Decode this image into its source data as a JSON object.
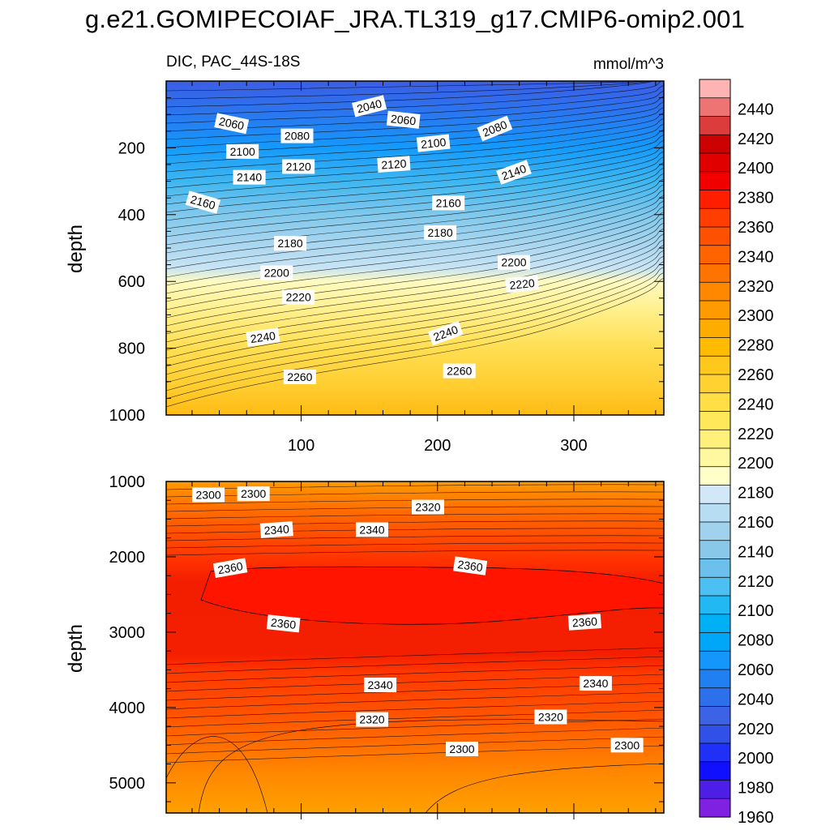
{
  "title": "g.e21.GOMIPECOIAF_JRA.TL319_g17.CMIP6-omip2.001",
  "chart_data": [
    {
      "type": "heatmap",
      "panel": "upper",
      "left_label": "DIC, PAC_44S-18S",
      "right_label": "mmol/m^3",
      "xlabel": "",
      "ylabel": "depth",
      "xlim": [
        1,
        366
      ],
      "ylim": [
        1000,
        0
      ],
      "x_ticks": [
        100,
        200,
        300
      ],
      "y_ticks": [
        200,
        400,
        600,
        800,
        1000
      ],
      "contour_labels": [
        {
          "text": "2040",
          "x": 150,
          "y": 75
        },
        {
          "text": "2060",
          "x": 49,
          "y": 127
        },
        {
          "text": "2060",
          "x": 175,
          "y": 116
        },
        {
          "text": "2080",
          "x": 97,
          "y": 164
        },
        {
          "text": "2080",
          "x": 242,
          "y": 142
        },
        {
          "text": "2100",
          "x": 57,
          "y": 211
        },
        {
          "text": "2100",
          "x": 197,
          "y": 186
        },
        {
          "text": "2120",
          "x": 98,
          "y": 256
        },
        {
          "text": "2120",
          "x": 168,
          "y": 249
        },
        {
          "text": "2140",
          "x": 62,
          "y": 288
        },
        {
          "text": "2140",
          "x": 256,
          "y": 273
        },
        {
          "text": "2160",
          "x": 28,
          "y": 363
        },
        {
          "text": "2160",
          "x": 208,
          "y": 365
        },
        {
          "text": "2180",
          "x": 92,
          "y": 486
        },
        {
          "text": "2180",
          "x": 202,
          "y": 454
        },
        {
          "text": "2200",
          "x": 82,
          "y": 574
        },
        {
          "text": "2200",
          "x": 256,
          "y": 543
        },
        {
          "text": "2220",
          "x": 98,
          "y": 647
        },
        {
          "text": "2220",
          "x": 262,
          "y": 608
        },
        {
          "text": "2240",
          "x": 72,
          "y": 767
        },
        {
          "text": "2240",
          "x": 206,
          "y": 755
        },
        {
          "text": "2260",
          "x": 99,
          "y": 886
        },
        {
          "text": "2260",
          "x": 216,
          "y": 868
        }
      ]
    },
    {
      "type": "heatmap",
      "panel": "lower",
      "xlabel": "",
      "ylabel": "depth",
      "xlim": [
        1,
        366
      ],
      "ylim": [
        5400,
        1000
      ],
      "y_ticks": [
        1000,
        2000,
        3000,
        4000,
        5000
      ],
      "contour_labels": [
        {
          "text": "2300",
          "x": 32,
          "y": 1178
        },
        {
          "text": "2300",
          "x": 65,
          "y": 1163
        },
        {
          "text": "2320",
          "x": 193,
          "y": 1340
        },
        {
          "text": "2340",
          "x": 82,
          "y": 1640
        },
        {
          "text": "2340",
          "x": 152,
          "y": 1640
        },
        {
          "text": "2360",
          "x": 48,
          "y": 2148
        },
        {
          "text": "2360",
          "x": 224,
          "y": 2120
        },
        {
          "text": "2360",
          "x": 87,
          "y": 2886
        },
        {
          "text": "2360",
          "x": 308,
          "y": 2865
        },
        {
          "text": "2340",
          "x": 158,
          "y": 3700
        },
        {
          "text": "2340",
          "x": 316,
          "y": 3680
        },
        {
          "text": "2320",
          "x": 152,
          "y": 4158
        },
        {
          "text": "2320",
          "x": 283,
          "y": 4125
        },
        {
          "text": "2300",
          "x": 218,
          "y": 4550
        },
        {
          "text": "2300",
          "x": 339,
          "y": 4500
        }
      ]
    }
  ],
  "colorbar": {
    "labels": [
      "2440",
      "2420",
      "2400",
      "2380",
      "2360",
      "2340",
      "2320",
      "2300",
      "2280",
      "2260",
      "2240",
      "2220",
      "2200",
      "2180",
      "2160",
      "2140",
      "2120",
      "2100",
      "2080",
      "2060",
      "2040",
      "2020",
      "2000",
      "1980",
      "1960"
    ],
    "colors": [
      "#FFB3B3",
      "#EE7373",
      "#DC3C3C",
      "#CC0000",
      "#E10000",
      "#F20000",
      "#FF1E00",
      "#FF3E00",
      "#FF5000",
      "#FF6400",
      "#FF7400",
      "#FF8800",
      "#FF9A00",
      "#FFAC00",
      "#FFBB00",
      "#FFC81C",
      "#FFD232",
      "#FFDE46",
      "#FFE85A",
      "#FFF07A",
      "#FFF8A0",
      "#FFFFC8",
      "#D2E8F8",
      "#B6DDF2",
      "#A0D2EE",
      "#8AC8EA",
      "#6CC0EC",
      "#4CC0F2",
      "#22B8F4",
      "#00B0F4",
      "#00A6F8",
      "#1496FA",
      "#2080F2",
      "#2C70EC",
      "#3C62E6",
      "#3050E8",
      "#2030F6",
      "#1010FF",
      "#4C1EE6",
      "#8020E0"
    ],
    "units": "mmol/m^3",
    "range": [
      1950,
      2450
    ]
  }
}
